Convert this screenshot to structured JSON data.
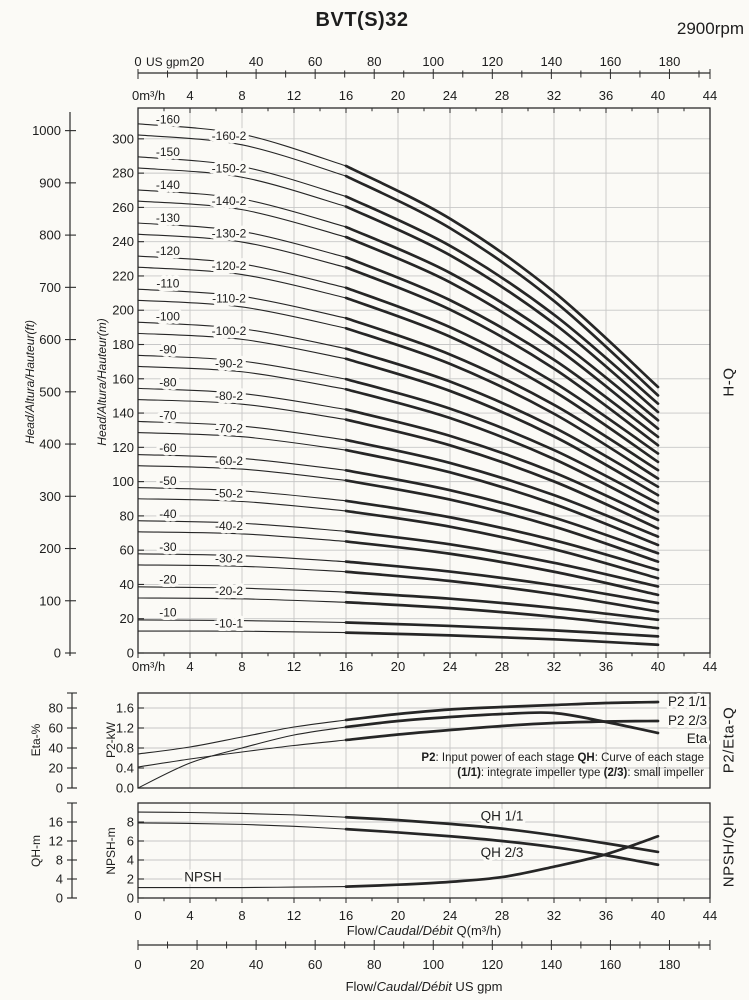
{
  "header": {
    "title": "BVT(S)32",
    "rpm": "2900rpm"
  },
  "colors": {
    "ink": "#1d1d1d",
    "curve": "#262626",
    "grid": "#c7c7c7",
    "border": "#2b2b2b",
    "background": "#fbfaf6"
  },
  "side_labels": {
    "main": "H-Q",
    "middle": "P2/Eta-Q",
    "bottom": "NPSH/QH"
  },
  "axis_titles": {
    "head_ft": "Head/Altura/Hauteur(ft)",
    "head_m": "Head/Altura/Hauteur(m)",
    "eta": "Eta-%",
    "p2": "P2-kW",
    "qh": "QH-m",
    "npsh": "NPSH-m",
    "flow_m3h": {
      "pre": "Flow/",
      "italic": "Caudal/Débit",
      "post": " Q(m³/h)"
    },
    "flow_gpm": {
      "pre": "Flow/",
      "italic": "Caudal/Débit",
      "post": "  US gpm"
    }
  },
  "annotation": {
    "line1": [
      {
        "t": "P2",
        "b": true
      },
      {
        "t": ": Input power of each stage ",
        "b": false
      },
      {
        "t": "QH",
        "b": true
      },
      {
        "t": ": Curve of each stage",
        "b": false
      }
    ],
    "line2": [
      {
        "t": "(1/1)",
        "b": true
      },
      {
        "t": ": integrate impeller type ",
        "b": false
      },
      {
        "t": "(2/3)",
        "b": true
      },
      {
        "t": ": small impeller",
        "b": false
      }
    ]
  },
  "gpm_axis": {
    "unit": "US gpm",
    "labels": [
      0,
      20,
      40,
      60,
      80,
      100,
      120,
      140,
      160,
      180
    ],
    "minor_step": 10,
    "max_tick": 190
  },
  "m3h_axis": {
    "unit_zero": "0m³/h",
    "zero_plain": "0",
    "labels": [
      4,
      8,
      12,
      16,
      20,
      24,
      28,
      32,
      36,
      40,
      44
    ]
  },
  "chart_data": [
    {
      "type": "line",
      "id": "hq",
      "title": "H-Q",
      "xlabel": "Flow Q(m³/h)",
      "ylabel": "Head (m / ft)",
      "xlim": [
        0,
        44
      ],
      "x_grid_step": 4,
      "ylim_m": [
        0,
        318
      ],
      "y_grid_step_m": 20,
      "y_ticks_m": {
        "min": 0,
        "max": 300,
        "step": 20
      },
      "y_ticks_ft": {
        "min": 0,
        "max": 1000,
        "step": 100
      },
      "bold_from_q": 16,
      "q": [
        0,
        8,
        16,
        24,
        32,
        40
      ],
      "series": [
        {
          "label": "-10",
          "type": "full",
          "label_q": 2.3,
          "head_m": [
            19.3,
            18.9,
            17.8,
            15.8,
            13.2,
            9.7
          ]
        },
        {
          "label": "-10-1",
          "type": "small",
          "label_q": 7.0,
          "head_m": [
            12.8,
            12.7,
            11.9,
            10.3,
            8.0,
            4.8
          ]
        },
        {
          "label": "-20",
          "type": "full",
          "label_q": 2.3,
          "head_m": [
            38.6,
            37.8,
            35.5,
            31.7,
            26.3,
            19.4
          ]
        },
        {
          "label": "-20-2",
          "type": "small",
          "label_q": 7.0,
          "head_m": [
            32.1,
            31.6,
            29.6,
            26.2,
            21.1,
            14.5
          ]
        },
        {
          "label": "-30",
          "type": "full",
          "label_q": 2.3,
          "head_m": [
            57.9,
            56.8,
            53.3,
            47.5,
            39.5,
            29.1
          ]
        },
        {
          "label": "-30-2",
          "type": "small",
          "label_q": 7.0,
          "head_m": [
            51.4,
            50.6,
            47.4,
            42.0,
            34.3,
            24.2
          ]
        },
        {
          "label": "-40",
          "type": "full",
          "label_q": 2.3,
          "head_m": [
            77.2,
            75.7,
            71.0,
            63.4,
            52.6,
            38.8
          ]
        },
        {
          "label": "-40-2",
          "type": "small",
          "label_q": 7.0,
          "head_m": [
            70.7,
            69.5,
            65.1,
            57.9,
            47.4,
            33.9
          ]
        },
        {
          "label": "-50",
          "type": "full",
          "label_q": 2.3,
          "head_m": [
            96.5,
            94.6,
            88.8,
            79.2,
            65.8,
            48.5
          ]
        },
        {
          "label": "-50-2",
          "type": "small",
          "label_q": 7.0,
          "head_m": [
            90.0,
            88.4,
            82.9,
            73.7,
            60.6,
            43.6
          ]
        },
        {
          "label": "-60",
          "type": "full",
          "label_q": 2.3,
          "head_m": [
            115.8,
            113.5,
            106.6,
            95.0,
            79.0,
            58.2
          ]
        },
        {
          "label": "-60-2",
          "type": "small",
          "label_q": 7.0,
          "head_m": [
            109.3,
            107.3,
            100.7,
            89.5,
            73.8,
            53.3
          ]
        },
        {
          "label": "-70",
          "type": "full",
          "label_q": 2.3,
          "head_m": [
            135.1,
            132.4,
            124.3,
            110.9,
            92.1,
            67.9
          ]
        },
        {
          "label": "-70-2",
          "type": "small",
          "label_q": 7.0,
          "head_m": [
            128.6,
            126.2,
            118.4,
            105.4,
            86.9,
            63.0
          ]
        },
        {
          "label": "-80",
          "type": "full",
          "label_q": 2.3,
          "head_m": [
            154.4,
            151.4,
            142.1,
            126.7,
            105.3,
            77.6
          ]
        },
        {
          "label": "-80-2",
          "type": "small",
          "label_q": 7.0,
          "head_m": [
            147.9,
            145.2,
            136.2,
            121.2,
            100.1,
            72.7
          ]
        },
        {
          "label": "-90",
          "type": "full",
          "label_q": 2.3,
          "head_m": [
            173.7,
            170.3,
            159.8,
            142.6,
            118.4,
            87.3
          ]
        },
        {
          "label": "-90-2",
          "type": "small",
          "label_q": 7.0,
          "head_m": [
            167.2,
            164.1,
            153.9,
            137.1,
            113.2,
            82.4
          ]
        },
        {
          "label": "-100",
          "type": "full",
          "label_q": 2.3,
          "head_m": [
            193.0,
            189.2,
            177.6,
            158.4,
            131.6,
            97.0
          ]
        },
        {
          "label": "-100-2",
          "type": "small",
          "label_q": 7.0,
          "head_m": [
            186.5,
            183.0,
            171.7,
            152.9,
            126.4,
            92.1
          ]
        },
        {
          "label": "-110",
          "type": "full",
          "label_q": 2.3,
          "head_m": [
            212.3,
            208.1,
            195.4,
            174.2,
            144.8,
            106.7
          ]
        },
        {
          "label": "-110-2",
          "type": "small",
          "label_q": 7.0,
          "head_m": [
            205.8,
            201.9,
            189.5,
            168.7,
            139.6,
            101.8
          ]
        },
        {
          "label": "-120",
          "type": "full",
          "label_q": 2.3,
          "head_m": [
            231.6,
            227.0,
            213.1,
            190.1,
            157.9,
            116.4
          ]
        },
        {
          "label": "-120-2",
          "type": "small",
          "label_q": 7.0,
          "head_m": [
            225.1,
            220.8,
            207.2,
            184.6,
            152.7,
            111.5
          ]
        },
        {
          "label": "-130",
          "type": "full",
          "label_q": 2.3,
          "head_m": [
            250.9,
            246.0,
            230.9,
            205.9,
            171.1,
            126.1
          ]
        },
        {
          "label": "-130-2",
          "type": "small",
          "label_q": 7.0,
          "head_m": [
            244.4,
            239.8,
            225.0,
            200.4,
            165.9,
            121.2
          ]
        },
        {
          "label": "-140",
          "type": "full",
          "label_q": 2.3,
          "head_m": [
            270.2,
            264.9,
            248.6,
            221.8,
            184.2,
            135.8
          ]
        },
        {
          "label": "-140-2",
          "type": "small",
          "label_q": 7.0,
          "head_m": [
            263.7,
            258.7,
            242.7,
            216.3,
            179.0,
            130.9
          ]
        },
        {
          "label": "-150",
          "type": "full",
          "label_q": 2.3,
          "head_m": [
            289.5,
            283.8,
            266.4,
            237.6,
            197.4,
            145.5
          ]
        },
        {
          "label": "-150-2",
          "type": "small",
          "label_q": 7.0,
          "head_m": [
            283.0,
            277.6,
            260.5,
            232.1,
            192.2,
            140.6
          ]
        },
        {
          "label": "-160",
          "type": "full",
          "label_q": 2.3,
          "head_m": [
            308.8,
            302.7,
            284.2,
            253.4,
            210.6,
            155.2
          ]
        },
        {
          "label": "-160-2",
          "type": "small",
          "label_q": 7.0,
          "head_m": [
            302.3,
            296.5,
            278.3,
            247.9,
            205.4,
            150.3
          ]
        }
      ]
    },
    {
      "type": "line",
      "id": "p2eta",
      "title": "P2/Eta-Q",
      "xlim": [
        0,
        44
      ],
      "x_grid_step": 4,
      "ylim_kw": [
        0,
        1.9
      ],
      "kw_tick_labels": [
        "0.0",
        "0.4",
        "0.8",
        "1.2",
        "1.6"
      ],
      "eta_tick_labels": [
        0,
        20,
        40,
        60,
        80
      ],
      "eta_fullscale_kw": 1.6,
      "eta_fullscale_pct": 80,
      "bold_from_q": 16,
      "q": [
        0,
        4,
        8,
        12,
        16,
        20,
        24,
        28,
        32,
        36,
        40
      ],
      "series": [
        {
          "label": "P2 1/1",
          "unit": "kW",
          "values": [
            0.68,
            0.82,
            1.02,
            1.22,
            1.36,
            1.48,
            1.57,
            1.62,
            1.66,
            1.7,
            1.72
          ],
          "label_dy": 0
        },
        {
          "label": "P2 2/3",
          "unit": "kW",
          "values": [
            0.42,
            0.58,
            0.72,
            0.85,
            0.96,
            1.07,
            1.16,
            1.24,
            1.3,
            1.33,
            1.34
          ],
          "label_dy": 0
        },
        {
          "label": "Eta",
          "unit": "%",
          "values": [
            0,
            25,
            40,
            53,
            61,
            67,
            71,
            74,
            75,
            66,
            55
          ],
          "label_dy": 6
        }
      ]
    },
    {
      "type": "line",
      "id": "npshqh",
      "title": "NPSH/QH",
      "xlim": [
        0,
        44
      ],
      "x_grid_step": 4,
      "ylim_npsh": [
        0,
        10
      ],
      "npsh_tick_labels": [
        0,
        2,
        4,
        6,
        8
      ],
      "qh_tick_labels": [
        0,
        4,
        8,
        12,
        16
      ],
      "qh_per_npsh": 2,
      "bold_from_q": 16,
      "x_tick_labels": [
        0,
        4,
        8,
        12,
        16,
        20,
        24,
        28,
        32,
        36,
        40,
        44
      ],
      "q": [
        0,
        4,
        8,
        12,
        16,
        20,
        24,
        28,
        32,
        36,
        40
      ],
      "series": [
        {
          "label": "QH 1/1",
          "unit": "QH-m",
          "values": [
            18.1,
            18.0,
            17.8,
            17.5,
            17.0,
            16.4,
            15.6,
            14.6,
            13.2,
            11.5,
            9.7
          ],
          "label_pos": {
            "q": 28,
            "dy": -8
          }
        },
        {
          "label": "QH 2/3",
          "unit": "QH-m",
          "values": [
            15.8,
            15.7,
            15.5,
            15.1,
            14.5,
            13.8,
            13.0,
            12.0,
            10.7,
            9.0,
            7.0
          ],
          "label_pos": {
            "q": 28,
            "dy": 16
          }
        },
        {
          "label": "NPSH",
          "unit": "NPSH-m",
          "values": [
            1.1,
            1.1,
            1.1,
            1.15,
            1.2,
            1.4,
            1.7,
            2.2,
            3.3,
            4.6,
            6.5
          ],
          "label_pos": {
            "q": 5,
            "dy": -6
          }
        }
      ]
    }
  ]
}
